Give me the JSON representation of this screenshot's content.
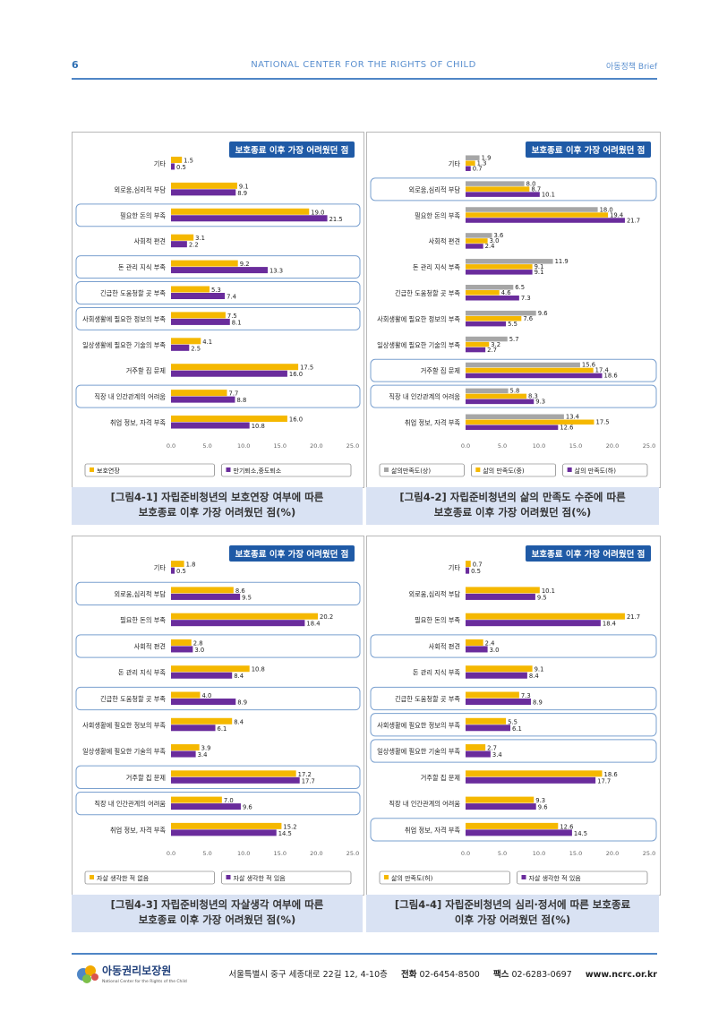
{
  "header": {
    "page_number": "6",
    "title": "NATIONAL CENTER FOR THE RIGHTS OF CHILD",
    "right": "아동정책 Brief"
  },
  "categories": [
    "기타",
    "외로움,심리적 부담",
    "필요한 돈의 부족",
    "사회적 편견",
    "돈 관리 지식 부족",
    "긴급한 도움청할 곳 부족",
    "사회생활에 필요한 정보의 부족",
    "일상생활에 필요한 기술의 부족",
    "거주할 집 문제",
    "직장 내 인간관계의 어려움",
    "취업 정보, 자격 부족"
  ],
  "chart_data": [
    {
      "type": "bar",
      "title": "보호종료 이후 가장 어려웠던 점",
      "xlim": [
        0,
        25
      ],
      "xticks": [
        "0.0",
        "5.0",
        "10.0",
        "15.0",
        "20.0",
        "25.0"
      ],
      "categories": [
        "기타",
        "외로움,심리적 부담",
        "필요한 돈의 부족",
        "사회적 편견",
        "돈 관리 지식 부족",
        "긴급한 도움청할 곳 부족",
        "사회생활에 필요한 정보의 부족",
        "일상생활에 필요한 기술의 부족",
        "거주할 집 문제",
        "직장 내 인간관계의 어려움",
        "취업 정보, 자격 부족"
      ],
      "boxed": [
        false,
        false,
        true,
        false,
        true,
        true,
        true,
        false,
        false,
        true,
        false
      ],
      "series": [
        {
          "name": "보호연장",
          "color": "#f5b800",
          "values": [
            1.5,
            9.1,
            19.0,
            3.1,
            9.2,
            5.3,
            7.5,
            4.1,
            17.5,
            7.7,
            16.0
          ]
        },
        {
          "name": "만기퇴소,중도퇴소",
          "color": "#6a2c9c",
          "values": [
            0.5,
            8.9,
            21.5,
            2.2,
            13.3,
            7.4,
            8.1,
            2.5,
            16.0,
            8.8,
            10.8
          ]
        }
      ]
    },
    {
      "type": "bar",
      "title": "보호종료 이후 가장 어려웠던 점",
      "xlim": [
        0,
        25
      ],
      "xticks": [
        "0.0",
        "5.0",
        "10.0",
        "15.0",
        "20.0",
        "25.0"
      ],
      "categories": [
        "기타",
        "외로움,심리적 부담",
        "필요한 돈의 부족",
        "사회적 편견",
        "돈 관리 지식 부족",
        "긴급한 도움청할 곳 부족",
        "사회생활에 필요한 정보의 부족",
        "일상생활에 필요한 기술의 부족",
        "거주할 집 문제",
        "직장 내 인간관계의 어려움",
        "취업 정보, 자격 부족"
      ],
      "boxed": [
        false,
        true,
        false,
        false,
        false,
        false,
        false,
        false,
        true,
        true,
        false
      ],
      "series": [
        {
          "name": "삶의만족도(상)",
          "color": "#a6a6a6",
          "values": [
            1.9,
            8.0,
            18.0,
            3.6,
            11.9,
            6.5,
            9.6,
            5.7,
            15.6,
            5.8,
            13.4
          ]
        },
        {
          "name": "삶의 만족도(중)",
          "color": "#f5b800",
          "values": [
            1.3,
            8.7,
            19.4,
            3.0,
            9.1,
            4.6,
            7.6,
            3.2,
            17.4,
            8.3,
            17.5
          ]
        },
        {
          "name": "삶의 만족도(하)",
          "color": "#6a2c9c",
          "values": [
            0.7,
            10.1,
            21.7,
            2.4,
            9.1,
            7.3,
            5.5,
            2.7,
            18.6,
            9.3,
            12.6
          ]
        }
      ]
    },
    {
      "type": "bar",
      "title": "보호종료 이후 가장 어려웠던 점",
      "xlim": [
        0,
        25
      ],
      "xticks": [
        "0.0",
        "5.0",
        "10.0",
        "15.0",
        "20.0",
        "25.0"
      ],
      "categories": [
        "기타",
        "외로움,심리적 부담",
        "필요한 돈의 부족",
        "사회적 편견",
        "돈 관리 지식 부족",
        "긴급한 도움청할 곳 부족",
        "사회생활에 필요한 정보의 부족",
        "일상생활에 필요한 기술의 부족",
        "거주할 집 문제",
        "직장 내 인간관계의 어려움",
        "취업 정보, 자격 부족"
      ],
      "boxed": [
        false,
        true,
        false,
        true,
        false,
        true,
        false,
        false,
        true,
        true,
        false
      ],
      "series": [
        {
          "name": "자살 생각한 적 없음",
          "color": "#f5b800",
          "values": [
            1.8,
            8.6,
            20.2,
            2.8,
            10.8,
            4.0,
            8.4,
            3.9,
            17.2,
            7.0,
            15.2
          ]
        },
        {
          "name": "자살 생각한 적 있음",
          "color": "#6a2c9c",
          "values": [
            0.5,
            9.5,
            18.4,
            3.0,
            8.4,
            8.9,
            6.1,
            3.4,
            17.7,
            9.6,
            14.5
          ]
        }
      ]
    },
    {
      "type": "bar",
      "title": "보호종료 이후 가장 어려웠던 점",
      "xlim": [
        0,
        25
      ],
      "xticks": [
        "0.0",
        "5.0",
        "10.0",
        "15.0",
        "20.0",
        "25.0"
      ],
      "categories": [
        "기타",
        "외로움,심리적 부담",
        "필요한 돈의 부족",
        "사회적 편견",
        "돈 관리 지식 부족",
        "긴급한 도움청할 곳 부족",
        "사회생활에 필요한 정보의 부족",
        "일상생활에 필요한 기술의 부족",
        "거주할 집 문제",
        "직장 내 인간관계의 어려움",
        "취업 정보, 자격 부족"
      ],
      "boxed": [
        false,
        false,
        false,
        true,
        false,
        true,
        true,
        true,
        false,
        false,
        true
      ],
      "series": [
        {
          "name": "삶의 만족도(허)",
          "color": "#f5b800",
          "values": [
            0.7,
            10.1,
            21.7,
            2.4,
            9.1,
            7.3,
            5.5,
            2.7,
            18.6,
            9.3,
            12.6
          ]
        },
        {
          "name": "자살 생각한 적 있음",
          "color": "#6a2c9c",
          "values": [
            0.5,
            9.5,
            18.4,
            3.0,
            8.4,
            8.9,
            6.1,
            3.4,
            17.7,
            9.6,
            14.5
          ]
        }
      ]
    }
  ],
  "captions": [
    {
      "line1": "[그림4-1] 자립준비청년의 보호연장 여부에 따른",
      "line2": "보호종료 이후 가장 어려웠던 점(%)"
    },
    {
      "line1": "[그림4-2] 자립준비청년의 삶의 만족도 수준에 따른",
      "line2": "보호종료 이후 가장 어려웠던 점(%)"
    },
    {
      "line1": "[그림4-3] 자립준비청년의 자살생각 여부에 따른",
      "line2": "보호종료 이후 가장 어려웠던 점(%)"
    },
    {
      "line1": "[그림4-4] 자립준비청년의 심리·정서에 따른 보호종료",
      "line2": "이후 가장 어려웠던 점(%)"
    }
  ],
  "footer": {
    "logo_text": "아동권리보장원",
    "logo_sub": "National Center for the Rights of the Child",
    "address": "서울특별시 중구 세종대로 22길 12, 4-10층",
    "phone_label": "전화",
    "phone": "02-6454-8500",
    "fax_label": "팩스",
    "fax": "02-6283-0697",
    "url": "www.ncrc.or.kr"
  }
}
